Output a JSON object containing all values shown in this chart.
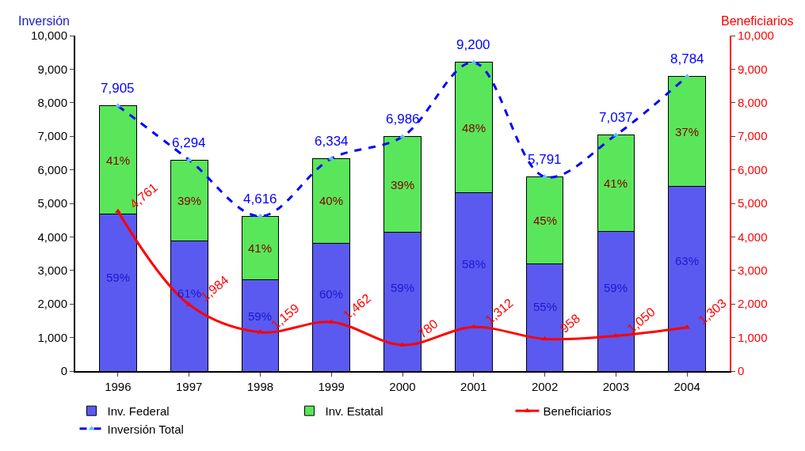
{
  "chart_data": {
    "type": "bar",
    "stacked": true,
    "ylabel": "Inversión",
    "y2label": "Beneficiarios",
    "categories": [
      "1996",
      "1997",
      "1998",
      "1999",
      "2000",
      "2001",
      "2002",
      "2003",
      "2004"
    ],
    "series": [
      {
        "name": "Inv. Federal",
        "color": "#5a5af0",
        "values": [
          4670,
          3870,
          2720,
          3820,
          4130,
          5320,
          3200,
          4160,
          5500
        ]
      },
      {
        "name": "Inv. Estatal",
        "color": "#5ae65a",
        "values": [
          3235,
          2424,
          1896,
          2514,
          2856,
          3880,
          2591,
          2877,
          3284
        ]
      },
      {
        "name": "Beneficiarios",
        "type": "line",
        "axis": "y2",
        "color": "#ff0000",
        "marker": "triangle",
        "line_style": "solid",
        "values": [
          4761,
          1984,
          1159,
          1462,
          780,
          1312,
          958,
          1050,
          1303
        ],
        "value_labels": [
          "4,761",
          "1,984",
          "1,159",
          "1,462",
          "780",
          "1,312",
          "958",
          "1,050",
          "1,303"
        ]
      },
      {
        "name": "Inversión Total",
        "type": "line",
        "color": "#0000ff",
        "marker": "triangle",
        "line_style": "dashed",
        "values": [
          7905,
          6294,
          4616,
          6334,
          6986,
          9200,
          5791,
          7037,
          8784
        ],
        "value_labels": [
          "7,905",
          "6,294",
          "4,616",
          "6,334",
          "6,986",
          "9,200",
          "5,791",
          "7,037",
          "8,784"
        ]
      }
    ],
    "annotations": [
      "59%",
      "61%",
      "59%",
      "60%",
      "59%",
      "58%",
      "55%",
      "59%",
      "63%",
      "41%",
      "39%",
      "41%",
      "40%",
      "39%",
      "48%",
      "45%",
      "41%",
      "37%"
    ],
    "ylim": [
      0,
      10000
    ],
    "yticks": [
      0,
      {
        "value": 1000,
        "label": "1,000"
      },
      {
        "value": 2000,
        "label": "2,000"
      },
      {
        "value": 3000,
        "label": "3,000"
      },
      {
        "value": 4000,
        "label": "4,000"
      },
      {
        "value": 5000,
        "label": "5,000"
      },
      {
        "value": 6000,
        "label": "6,000"
      },
      {
        "value": 7000,
        "label": "7,000"
      },
      {
        "value": 8000,
        "label": "8,000"
      },
      {
        "value": 9000,
        "label": "9,000"
      },
      {
        "value": 10000,
        "label": "10,000"
      }
    ],
    "y2lim": [
      0,
      10000
    ],
    "y2ticks": [
      0,
      {
        "value": 1000,
        "label": "1,000"
      },
      {
        "value": 2000,
        "label": "2,000"
      },
      {
        "value": 3000,
        "label": "3,000"
      },
      {
        "value": 4000,
        "label": "4,000"
      },
      {
        "value": 5000,
        "label": "5,000"
      },
      {
        "value": 6000,
        "label": "6,000"
      },
      {
        "value": 7000,
        "label": "7,000"
      },
      {
        "value": 8000,
        "label": "8,000"
      },
      {
        "value": 9000,
        "label": "9,000"
      },
      {
        "value": 10000,
        "label": "10,000"
      }
    ],
    "legend": "bottom"
  }
}
